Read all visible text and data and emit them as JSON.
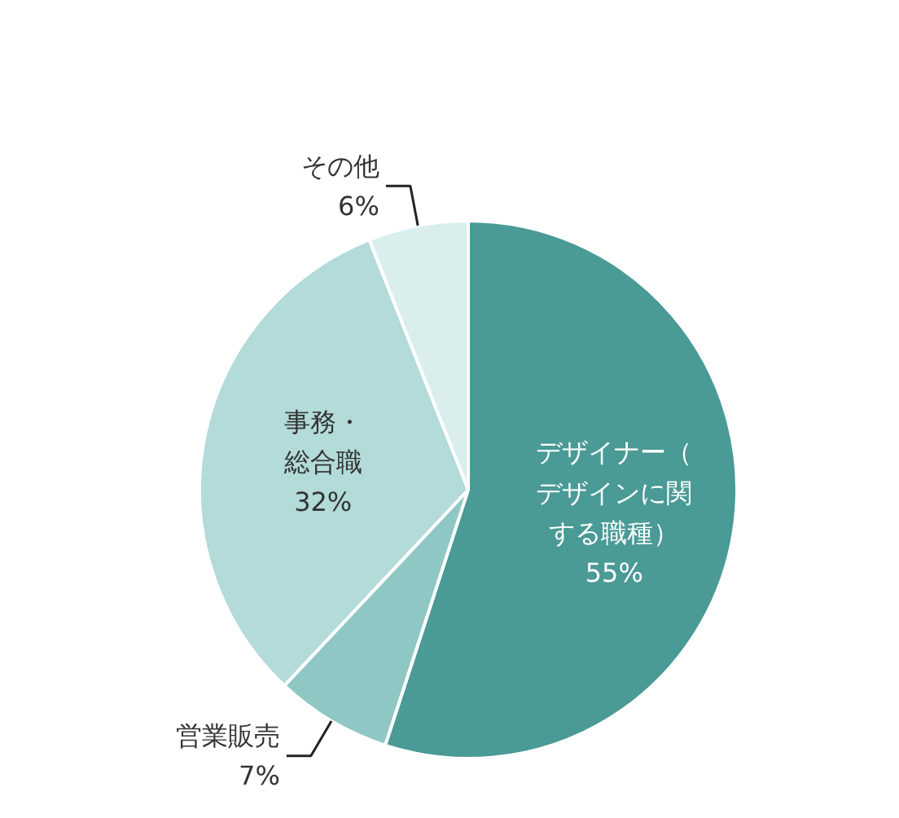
{
  "chart_data": {
    "type": "pie",
    "categories": [
      "デザイナー（デザインに関する職種）",
      "営業販売",
      "事務・総合職",
      "その他"
    ],
    "values": [
      55,
      7,
      32,
      6
    ],
    "value_labels": [
      "55%",
      "7%",
      "32%",
      "6%"
    ],
    "colors": [
      "#4a9a96",
      "#8fc7c4",
      "#b2dbd9",
      "#d9eeed"
    ]
  }
}
